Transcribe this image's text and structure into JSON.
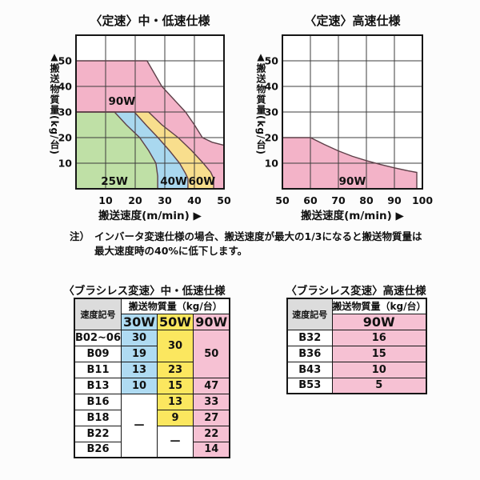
{
  "icons": {
    "y_axis_arrow": "▲",
    "x_axis_arrow": "▶"
  },
  "colors": {
    "chart_pink": "#F3B3C8",
    "chart_green": "#BFE0A6",
    "chart_blue": "#A9D8EF",
    "chart_yellow": "#F8DE8D",
    "curve_stroke": "#5E4049",
    "table_blue": "#AFDBF2",
    "table_yellow": "#FBE75F",
    "table_pink": "#F6C1D3",
    "header_gray": "#DCDCDC"
  },
  "note": {
    "marker": "注）",
    "line1": "インバータ変速仕様の場合、搬送速度が最大の1/3になると搬送物質量は",
    "line2": "最大速度時の40%に低下します。"
  },
  "chart_data": [
    {
      "type": "area",
      "title": "〈定速〉中・低速仕様",
      "xlabel": "搬送速度(m/min)",
      "ylabel": "搬送物質量(kg/台)",
      "xlim": [
        0,
        50
      ],
      "ylim": [
        0,
        60
      ],
      "x_ticks": [
        10,
        20,
        30,
        40,
        50
      ],
      "y_ticks": [
        10,
        20,
        30,
        40,
        50
      ],
      "grid": true,
      "legend": "none",
      "series": [
        {
          "name": "90W",
          "color": "#F3B3C8",
          "label_pos": [
            15.5,
            34
          ],
          "points": [
            [
              0,
              0
            ],
            [
              0,
              50
            ],
            [
              24,
              50
            ],
            [
              29,
              40
            ],
            [
              33,
              35
            ],
            [
              37,
              30
            ],
            [
              40,
              25
            ],
            [
              42.7,
              20
            ],
            [
              46,
              18.2
            ],
            [
              50,
              17
            ],
            [
              50,
              0
            ]
          ]
        },
        {
          "name": "60W",
          "color": "#F8DE8D",
          "label_pos": [
            42.5,
            2.8
          ],
          "points": [
            [
              0,
              0
            ],
            [
              0,
              30
            ],
            [
              24.5,
              30
            ],
            [
              29,
              25
            ],
            [
              34.5,
              20
            ],
            [
              39,
              15
            ],
            [
              43,
              10
            ],
            [
              45.5,
              6.5
            ],
            [
              46.5,
              4
            ],
            [
              46.5,
              0
            ]
          ]
        },
        {
          "name": "40W",
          "color": "#A9D8EF",
          "label_pos": [
            33,
            2.8
          ],
          "points": [
            [
              0,
              0
            ],
            [
              0,
              30
            ],
            [
              19.7,
              30
            ],
            [
              24,
              24.5
            ],
            [
              27.7,
              20
            ],
            [
              31.5,
              15
            ],
            [
              35,
              10
            ],
            [
              37,
              6
            ],
            [
              37.8,
              4
            ],
            [
              37.8,
              0
            ]
          ]
        },
        {
          "name": "25W",
          "color": "#BFE0A6",
          "label_pos": [
            13,
            2.8
          ],
          "points": [
            [
              0,
              0
            ],
            [
              0,
              30
            ],
            [
              13,
              30
            ],
            [
              17,
              25
            ],
            [
              21.5,
              20
            ],
            [
              24.5,
              15
            ],
            [
              27,
              10
            ],
            [
              27.6,
              5
            ],
            [
              27.6,
              0
            ]
          ]
        }
      ]
    },
    {
      "type": "area",
      "title": "〈定速〉高速仕様",
      "xlabel": "搬送速度(m/min)",
      "ylabel": "搬送物質量(kg/台)",
      "xlim": [
        50,
        100
      ],
      "ylim": [
        0,
        60
      ],
      "x_ticks": [
        50,
        60,
        70,
        80,
        90,
        100
      ],
      "y_ticks": [
        10,
        20,
        30,
        40,
        50
      ],
      "grid": true,
      "legend": "none",
      "series": [
        {
          "name": "90W",
          "color": "#F3B3C8",
          "label_pos": [
            75,
            2.8
          ],
          "points": [
            [
              50,
              0
            ],
            [
              50,
              20
            ],
            [
              60,
              20
            ],
            [
              65,
              17.3
            ],
            [
              70,
              14.8
            ],
            [
              75,
              12.7
            ],
            [
              80,
              11
            ],
            [
              85,
              9.5
            ],
            [
              90,
              8.2
            ],
            [
              95,
              7
            ],
            [
              98,
              6.4
            ],
            [
              98,
              0
            ]
          ]
        }
      ]
    },
    {
      "type": "table",
      "title": "〈ブラシレス変速〉中・低速仕様",
      "corner_header": "速度記号",
      "group_header": "搬送物質量（kg/台）",
      "columns": [
        "30W",
        "50W",
        "90W"
      ],
      "codes": [
        "B02~06",
        "B09",
        "B11",
        "B13",
        "B16",
        "B18",
        "B22",
        "B26"
      ],
      "cells": {
        "w30": {
          "b02_06": "30",
          "b09": "19",
          "b11": "13",
          "b13": "10",
          "b16_b26": "—"
        },
        "w50": {
          "b02_06_b09": "30",
          "b11": "23",
          "b13": "15",
          "b16": "13",
          "b18": "9",
          "b22_b26": "—"
        },
        "w90": {
          "b02_06_b11": "50",
          "b13": "47",
          "b16": "33",
          "b18": "27",
          "b22": "22",
          "b26": "14"
        }
      }
    },
    {
      "type": "table",
      "title": "〈ブラシレス変速〉高速仕様",
      "corner_header": "速度記号",
      "group_header": "搬送物質量（kg/台）",
      "columns": [
        "90W"
      ],
      "codes": [
        "B32",
        "B36",
        "B43",
        "B53"
      ],
      "values": [
        "16",
        "15",
        "10",
        "5"
      ]
    }
  ]
}
